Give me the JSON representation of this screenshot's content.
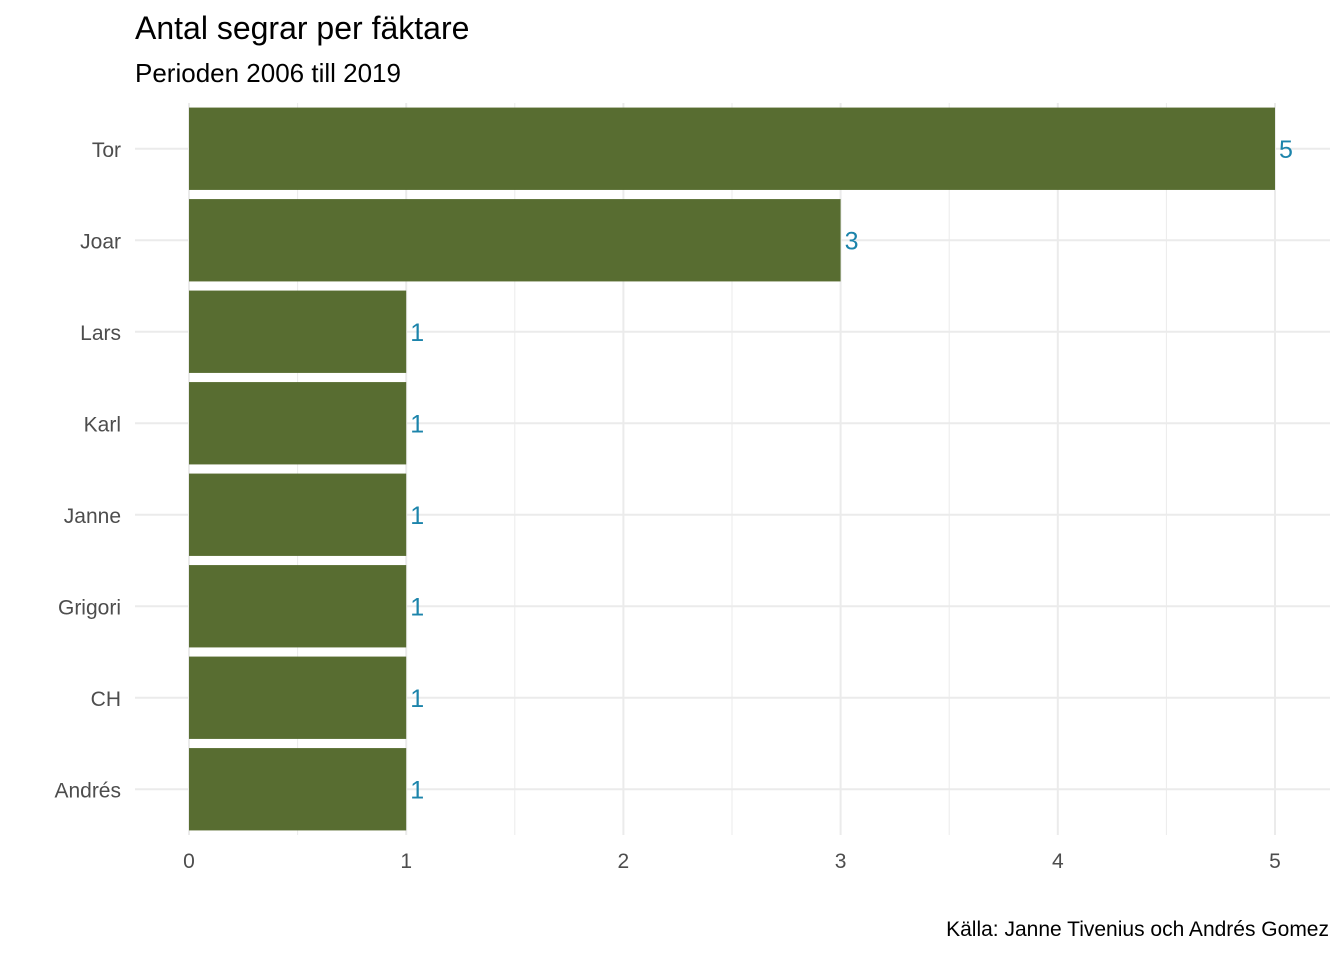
{
  "chart_data": {
    "type": "bar",
    "orientation": "horizontal",
    "title": "Antal segrar per fäktare",
    "subtitle": "Perioden 2006 till 2019",
    "caption": "Källa: Janne Tivenius och Andrés Gomez",
    "xlabel": "",
    "ylabel": "",
    "categories": [
      "Tor",
      "Joar",
      "Lars",
      "Karl",
      "Janne",
      "Grigori",
      "CH",
      "Andrés"
    ],
    "values": [
      5,
      3,
      1,
      1,
      1,
      1,
      1,
      1
    ],
    "xlim": [
      0,
      5
    ],
    "xticks": [
      0,
      1,
      2,
      3,
      4,
      5
    ],
    "grid": true,
    "bar_color": "#586d31",
    "label_color": "#1c84ab",
    "grid_color": "#ebebeb"
  }
}
